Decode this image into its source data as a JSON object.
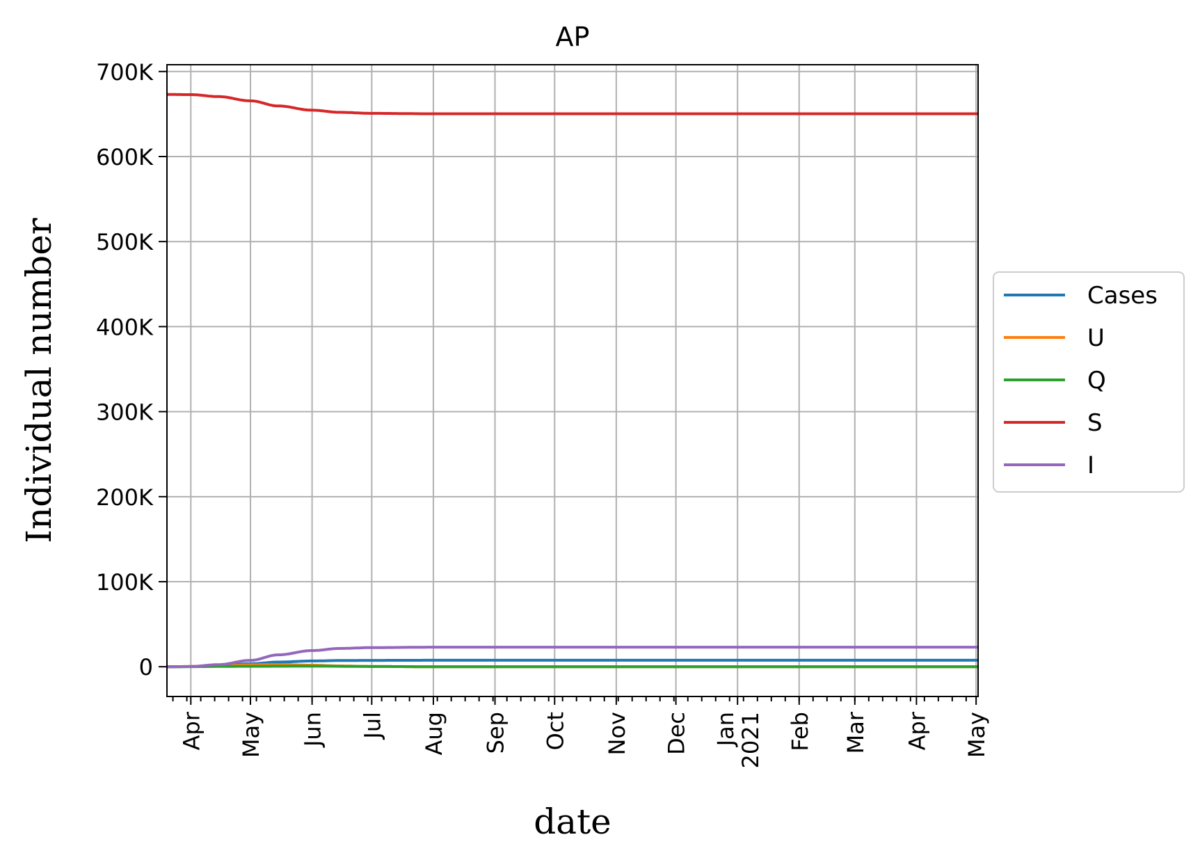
{
  "chart_data": {
    "type": "line",
    "title": "AP",
    "xlabel": "date",
    "ylabel": "Individual number",
    "x_domain": [
      "2020-03-20",
      "2021-05-02"
    ],
    "ylim": [
      -35000,
      708000
    ],
    "y_ticks": [
      {
        "value": 0,
        "label": "0"
      },
      {
        "value": 100000,
        "label": "100K"
      },
      {
        "value": 200000,
        "label": "200K"
      },
      {
        "value": 300000,
        "label": "300K"
      },
      {
        "value": 400000,
        "label": "400K"
      },
      {
        "value": 500000,
        "label": "500K"
      },
      {
        "value": 600000,
        "label": "600K"
      },
      {
        "value": 700000,
        "label": "700K"
      }
    ],
    "x_ticks": [
      {
        "date": "2020-04-01",
        "label": "Apr"
      },
      {
        "date": "2020-05-01",
        "label": "May"
      },
      {
        "date": "2020-06-01",
        "label": "Jun"
      },
      {
        "date": "2020-07-01",
        "label": "Jul"
      },
      {
        "date": "2020-08-01",
        "label": "Aug"
      },
      {
        "date": "2020-09-01",
        "label": "Sep"
      },
      {
        "date": "2020-10-01",
        "label": "Oct"
      },
      {
        "date": "2020-11-01",
        "label": "Nov"
      },
      {
        "date": "2020-12-01",
        "label": "Dec"
      },
      {
        "date": "2021-01-01",
        "label": "Jan",
        "sublabel": "2021"
      },
      {
        "date": "2021-02-01",
        "label": "Feb"
      },
      {
        "date": "2021-03-01",
        "label": "Mar"
      },
      {
        "date": "2021-04-01",
        "label": "Apr"
      },
      {
        "date": "2021-05-01",
        "label": "May"
      }
    ],
    "grid": true,
    "legend_position": "center-right outside",
    "series": [
      {
        "name": "Cases",
        "color": "#1f77b4",
        "points": [
          [
            "2020-03-20",
            0
          ],
          [
            "2020-04-01",
            200
          ],
          [
            "2020-04-15",
            1200
          ],
          [
            "2020-05-01",
            3500
          ],
          [
            "2020-05-15",
            5500
          ],
          [
            "2020-06-01",
            6800
          ],
          [
            "2020-06-15",
            7300
          ],
          [
            "2020-07-01",
            7500
          ],
          [
            "2020-08-01",
            7600
          ],
          [
            "2021-05-02",
            7600
          ]
        ]
      },
      {
        "name": "U",
        "color": "#ff7f0e",
        "points": [
          [
            "2020-03-20",
            0
          ],
          [
            "2020-04-15",
            800
          ],
          [
            "2020-05-01",
            2200
          ],
          [
            "2020-05-15",
            2600
          ],
          [
            "2020-06-01",
            1800
          ],
          [
            "2020-06-15",
            900
          ],
          [
            "2020-07-01",
            300
          ],
          [
            "2020-08-01",
            0
          ],
          [
            "2021-05-02",
            0
          ]
        ]
      },
      {
        "name": "Q",
        "color": "#2ca02c",
        "points": [
          [
            "2020-03-20",
            0
          ],
          [
            "2020-05-01",
            500
          ],
          [
            "2020-06-01",
            700
          ],
          [
            "2020-07-01",
            300
          ],
          [
            "2020-08-01",
            0
          ],
          [
            "2021-05-02",
            0
          ]
        ]
      },
      {
        "name": "S",
        "color": "#d62728",
        "points": [
          [
            "2020-03-20",
            673000
          ],
          [
            "2020-04-01",
            672800
          ],
          [
            "2020-04-15",
            670500
          ],
          [
            "2020-05-01",
            665500
          ],
          [
            "2020-05-15",
            659500
          ],
          [
            "2020-06-01",
            654500
          ],
          [
            "2020-06-15",
            652000
          ],
          [
            "2020-07-01",
            650800
          ],
          [
            "2020-08-01",
            650300
          ],
          [
            "2021-05-02",
            650300
          ]
        ]
      },
      {
        "name": "I",
        "color": "#9467bd",
        "points": [
          [
            "2020-03-20",
            0
          ],
          [
            "2020-04-01",
            300
          ],
          [
            "2020-04-15",
            2500
          ],
          [
            "2020-05-01",
            7500
          ],
          [
            "2020-05-15",
            14000
          ],
          [
            "2020-06-01",
            19000
          ],
          [
            "2020-06-15",
            21500
          ],
          [
            "2020-07-01",
            22500
          ],
          [
            "2020-08-01",
            23000
          ],
          [
            "2021-05-02",
            23000
          ]
        ]
      }
    ]
  }
}
